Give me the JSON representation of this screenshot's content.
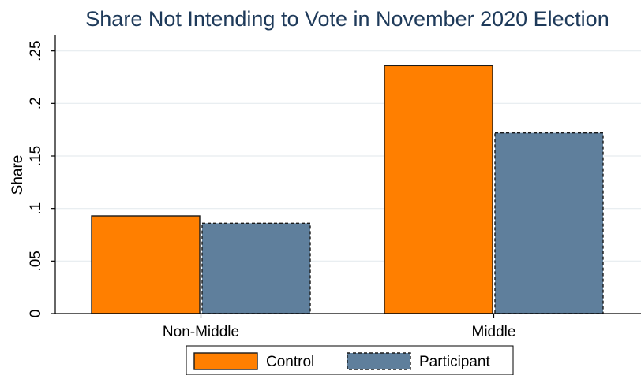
{
  "chart_data": {
    "type": "bar",
    "title": "Share Not Intending to Vote in November 2020 Election",
    "xlabel": "",
    "ylabel": "Share",
    "categories": [
      "Non-Middle",
      "Middle"
    ],
    "series": [
      {
        "name": "Control",
        "values": [
          0.093,
          0.236
        ],
        "color": "#ff7f00",
        "border": "solid"
      },
      {
        "name": "Participant",
        "values": [
          0.086,
          0.172
        ],
        "color": "#5f7f9c",
        "border": "dashed"
      }
    ],
    "ylim": [
      0,
      0.25
    ],
    "yticks": [
      0,
      0.05,
      0.1,
      0.15,
      0.2,
      0.25
    ],
    "ytick_labels": [
      "0",
      ".05",
      ".1",
      ".15",
      ".2",
      ".25"
    ],
    "grid": true,
    "legend_position": "bottom"
  }
}
